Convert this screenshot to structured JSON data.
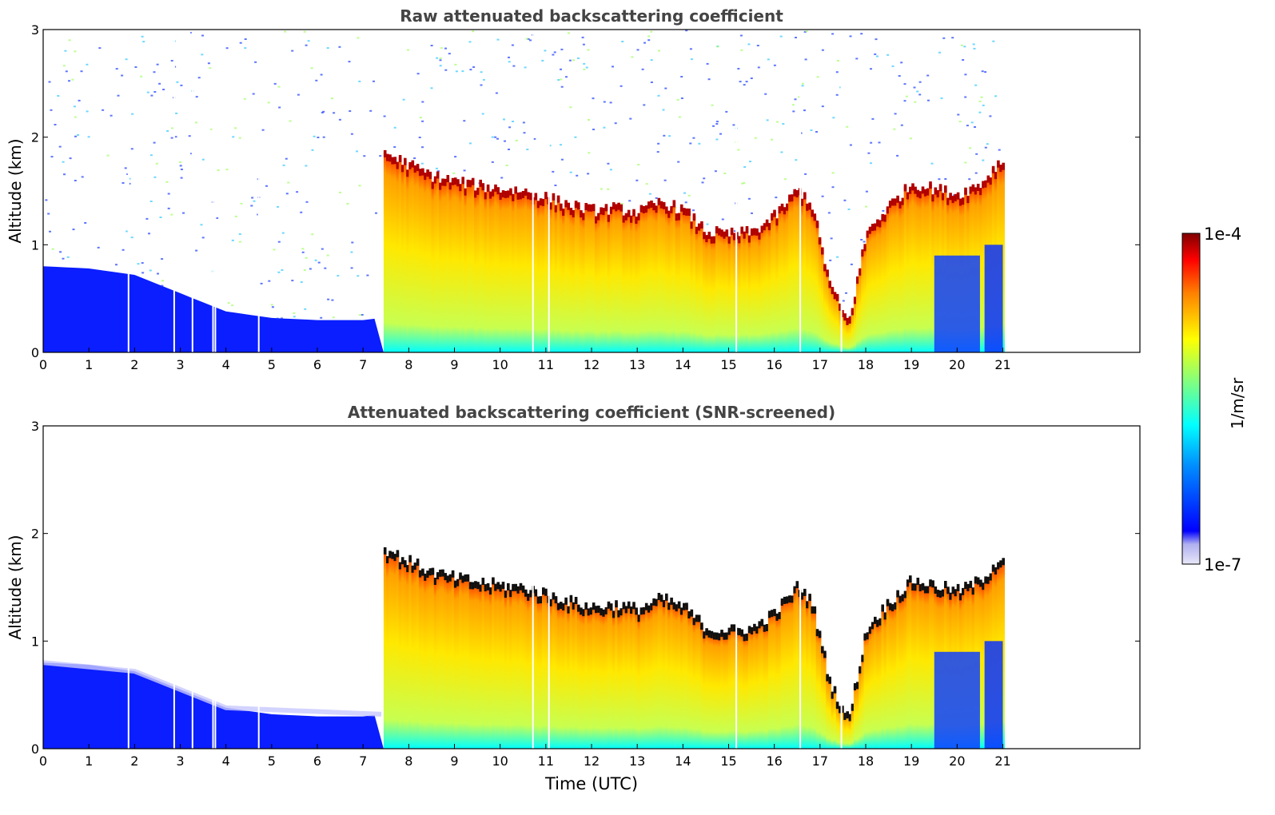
{
  "chart_data": [
    {
      "type": "heatmap",
      "title": "Raw attenuated backscattering coefficient",
      "xlabel": "",
      "ylabel": "Altitude (km)",
      "xlim": [
        0,
        24
      ],
      "ylim": [
        0,
        3
      ],
      "x_ticks": [
        0,
        1,
        2,
        3,
        4,
        5,
        6,
        7,
        8,
        9,
        10,
        11,
        12,
        13,
        14,
        15,
        16,
        17,
        18,
        19,
        20,
        21
      ],
      "y_ticks": [
        0,
        1,
        2,
        3
      ],
      "data_extent_hours": [
        0,
        21
      ],
      "features": {
        "cloud_onset_hour": 7.45,
        "cloud_top_km": [
          [
            7.4,
            1.85
          ],
          [
            8.0,
            1.72
          ],
          [
            8.5,
            1.62
          ],
          [
            9.0,
            1.57
          ],
          [
            9.5,
            1.53
          ],
          [
            10.0,
            1.5
          ],
          [
            10.5,
            1.48
          ],
          [
            11.0,
            1.42
          ],
          [
            11.5,
            1.35
          ],
          [
            12.0,
            1.3
          ],
          [
            12.5,
            1.32
          ],
          [
            13.0,
            1.28
          ],
          [
            13.5,
            1.38
          ],
          [
            14.0,
            1.3
          ],
          [
            14.5,
            1.1
          ],
          [
            15.0,
            1.08
          ],
          [
            15.5,
            1.1
          ],
          [
            16.0,
            1.25
          ],
          [
            16.5,
            1.5
          ],
          [
            16.8,
            1.35
          ],
          [
            17.2,
            0.6
          ],
          [
            17.6,
            0.25
          ],
          [
            18.0,
            1.1
          ],
          [
            18.5,
            1.35
          ],
          [
            19.0,
            1.55
          ],
          [
            19.5,
            1.5
          ],
          [
            20.0,
            1.45
          ],
          [
            20.5,
            1.55
          ],
          [
            20.9,
            1.75
          ]
        ],
        "near_surface_layer_top_km": [
          [
            0,
            0.8
          ],
          [
            1,
            0.78
          ],
          [
            2,
            0.72
          ],
          [
            3,
            0.55
          ],
          [
            4,
            0.38
          ],
          [
            5,
            0.32
          ],
          [
            6,
            0.3
          ],
          [
            7,
            0.3
          ],
          [
            7.4,
            0.32
          ]
        ]
      }
    },
    {
      "type": "heatmap",
      "title": "Attenuated backscattering coefficient (SNR-screened)",
      "xlabel": "Time (UTC)",
      "ylabel": "Altitude (km)",
      "xlim": [
        0,
        24
      ],
      "ylim": [
        0,
        3
      ],
      "x_ticks": [
        0,
        1,
        2,
        3,
        4,
        5,
        6,
        7,
        8,
        9,
        10,
        11,
        12,
        13,
        14,
        15,
        16,
        17,
        18,
        19,
        20,
        21
      ],
      "y_ticks": [
        0,
        1,
        2,
        3
      ],
      "data_extent_hours": [
        0,
        21
      ]
    }
  ],
  "colorbar": {
    "label": "1/m/sr",
    "max_label": "1e-4",
    "min_label": "1e-7",
    "scale": "log",
    "colormap": "jet",
    "colors": [
      "#e8e8f8",
      "#0000ff",
      "#00a0ff",
      "#00ffff",
      "#80ff80",
      "#ffff00",
      "#ff8000",
      "#ff0000",
      "#800000"
    ]
  }
}
